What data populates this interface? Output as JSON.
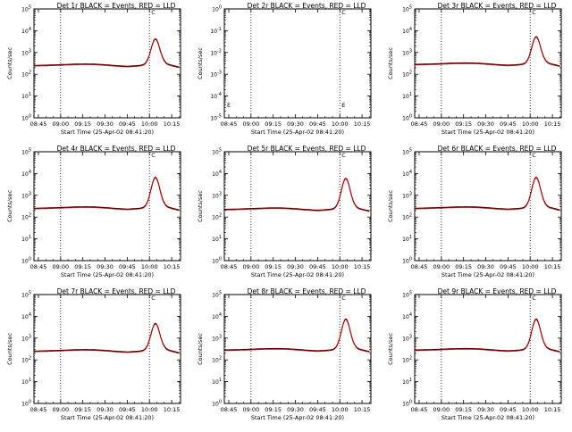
{
  "panels": [
    {
      "title": "Det 1r BLACK = Events, RED = LLD",
      "base": 2.4,
      "peak": 3.55,
      "flat": false,
      "marks": [
        "C"
      ]
    },
    {
      "title": "Det 2r BLACK = Events, RED = LLD",
      "base": null,
      "peak": null,
      "flat": true,
      "marks": [
        "C",
        "E",
        "E"
      ]
    },
    {
      "title": "Det 3r BLACK = Events, RED = LLD",
      "base": 2.45,
      "peak": 3.65,
      "flat": false,
      "marks": [
        "C"
      ]
    },
    {
      "title": "Det 4r BLACK = Events, RED = LLD",
      "base": 2.4,
      "peak": 3.75,
      "flat": false,
      "marks": [
        "C"
      ]
    },
    {
      "title": "Det 5r BLACK = Events, RED = LLD",
      "base": 2.35,
      "peak": 3.7,
      "flat": false,
      "marks": [
        "C"
      ]
    },
    {
      "title": "Det 6r BLACK = Events, RED = LLD",
      "base": 2.4,
      "peak": 3.75,
      "flat": false,
      "marks": [
        "C"
      ]
    },
    {
      "title": "Det 7r BLACK = Events, RED = LLD",
      "base": 2.4,
      "peak": 3.6,
      "flat": false,
      "marks": [
        "C"
      ]
    },
    {
      "title": "Det 8r BLACK = Events, RED = LLD",
      "base": 2.45,
      "peak": 3.8,
      "flat": false,
      "marks": [
        "C"
      ]
    },
    {
      "title": "Det 9r BLACK = Events, RED = LLD",
      "base": 2.45,
      "peak": 3.8,
      "flat": false,
      "marks": [
        "C"
      ]
    }
  ],
  "xlabel": "Start Time (25-Apr-02 08:41:20)",
  "ylabel": "Counts/sec",
  "ylabel_alt": "Counts/sec",
  "chart_data": {
    "type": "line",
    "title": "",
    "xlabel": "Start Time (25-Apr-02 08:41:20)",
    "ylabel": "Counts/sec",
    "y_scale": "log",
    "ylim": [
      1,
      100000
    ],
    "x_tick_labels": [
      "08:45",
      "09:00",
      "09:15",
      "09:30",
      "09:45",
      "10:00",
      "10:15"
    ],
    "y_tick_labels": [
      "10^0",
      "10^1",
      "10^2",
      "10^3",
      "10^4",
      "10^5"
    ],
    "y_tick_labels_2r": [
      "10^-5",
      "10^-4",
      "10^-3",
      "10^-2",
      "10^-1",
      "10^0"
    ],
    "vertical_dotted_lines": [
      "09:00",
      "10:00"
    ],
    "series_legend": [
      "BLACK = Events",
      "RED = LLD"
    ],
    "series_colors": {
      "events": "#000000",
      "lld": "#cc0000"
    },
    "panels": [
      "Det 1r",
      "Det 2r",
      "Det 3r",
      "Det 4r",
      "Det 5r",
      "Det 6r",
      "Det 7r",
      "Det 8r",
      "Det 9r"
    ]
  }
}
